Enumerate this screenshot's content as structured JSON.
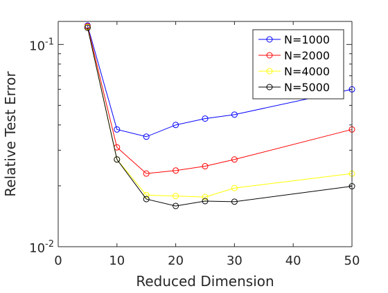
{
  "chart_data": {
    "type": "line",
    "title": "",
    "xlabel": "Reduced Dimension",
    "ylabel": "Relative Test Error",
    "xlim": [
      0,
      50
    ],
    "ylim": [
      0.01,
      0.13
    ],
    "yscale": "log",
    "grid": false,
    "legend_position": "top-right",
    "x_ticks": [
      0,
      10,
      20,
      30,
      40,
      50
    ],
    "x_tick_labels": [
      "0",
      "10",
      "20",
      "30",
      "40",
      "50"
    ],
    "y_ticks": [
      0.01,
      0.1
    ],
    "y_tick_labels": [
      {
        "base": "10",
        "exp": "-2"
      },
      {
        "base": "10",
        "exp": "-1"
      }
    ],
    "x": [
      5,
      10,
      15,
      20,
      25,
      30,
      50
    ],
    "series": [
      {
        "name": "N=1000",
        "color": "#0000ff",
        "marker": "circle",
        "values": [
          0.124,
          0.038,
          0.035,
          0.04,
          0.043,
          0.045,
          0.06
        ]
      },
      {
        "name": "N=2000",
        "color": "#ff0000",
        "marker": "circle",
        "values": [
          0.123,
          0.031,
          0.023,
          0.0238,
          0.025,
          0.027,
          0.038
        ]
      },
      {
        "name": "N=4000",
        "color": "#ffff00",
        "marker": "circle",
        "values": [
          0.122,
          0.027,
          0.018,
          0.0178,
          0.0176,
          0.0195,
          0.023
        ]
      },
      {
        "name": "N=5000",
        "color": "#000000",
        "marker": "circle",
        "values": [
          0.121,
          0.027,
          0.0172,
          0.0159,
          0.0168,
          0.0167,
          0.0199
        ]
      }
    ]
  }
}
